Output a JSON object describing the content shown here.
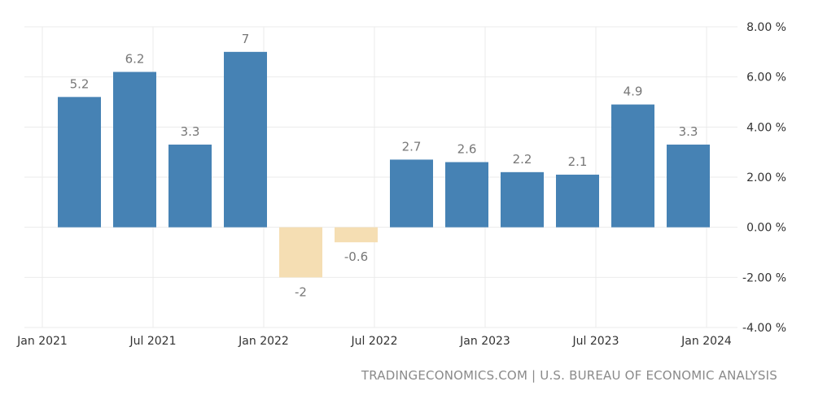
{
  "chart_data": {
    "type": "bar",
    "categories": [
      "Q1 2021",
      "Q2 2021",
      "Q3 2021",
      "Q4 2021",
      "Q1 2022",
      "Q2 2022",
      "Q3 2022",
      "Q4 2022",
      "Q1 2023",
      "Q2 2023",
      "Q3 2023",
      "Q4 2023"
    ],
    "values": [
      5.2,
      6.2,
      3.3,
      7,
      -2,
      -0.6,
      2.7,
      2.6,
      2.2,
      2.1,
      4.9,
      3.3
    ],
    "data_labels": [
      "5.2",
      "6.2",
      "3.3",
      "7",
      "-2",
      "-0.6",
      "2.7",
      "2.6",
      "2.2",
      "2.1",
      "4.9",
      "3.3"
    ],
    "x_ticks": [
      "Jan 2021",
      "Jul 2021",
      "Jan 2022",
      "Jul 2022",
      "Jan 2023",
      "Jul 2023",
      "Jan 2024"
    ],
    "y_ticks": [
      8,
      6,
      4,
      2,
      0,
      -2,
      -4
    ],
    "y_tick_labels": [
      "8.00 %",
      "6.00 %",
      "4.00 %",
      "2.00 %",
      "0.00 %",
      "-2.00 %",
      "-4.00 %"
    ],
    "ylim": [
      -4,
      8
    ],
    "grid": true,
    "title": "",
    "xlabel": "",
    "ylabel": "",
    "colors": {
      "positive": "#4682b4",
      "negative": "#f5deb3",
      "label": "#777777",
      "axis_text": "#333333",
      "grid": "#ebebeb"
    }
  },
  "source": "TRADINGECONOMICS.COM | U.S. BUREAU OF ECONOMIC ANALYSIS"
}
